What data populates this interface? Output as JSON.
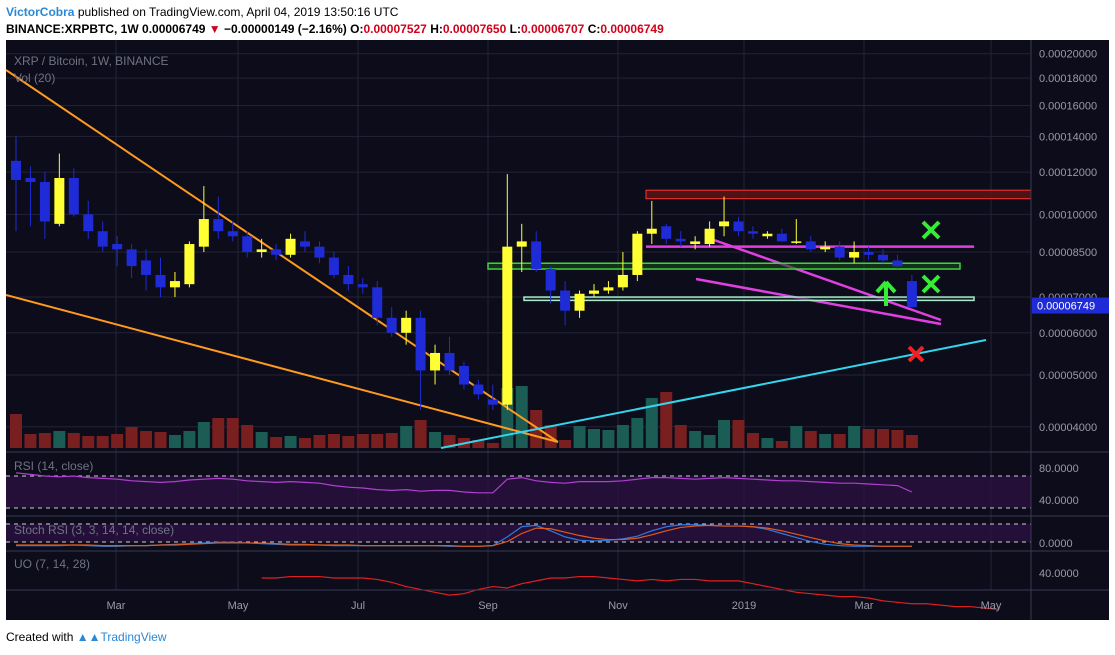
{
  "header": {
    "author": "VictorCobra",
    "published": "published on TradingView.com, April 04, 2019 13:50:16 UTC",
    "symbol": "BINANCE:XRPBTC, 1W",
    "last": "0.00006749",
    "change_arrow": "▼",
    "change": "−0.00000149 (−2.16%)",
    "o_label": "O:",
    "o_value": "0.00007527",
    "h_label": "H:",
    "h_value": "0.00007650",
    "l_label": "L:",
    "l_value": "0.00006707",
    "c_label": "C:",
    "c_value": "0.00006749"
  },
  "legend": {
    "main": "XRP / Bitcoin, 1W, BINANCE",
    "vol": "Vol (20)",
    "rsi": "RSI (14, close)",
    "stoch": "Stoch RSI (3, 3, 14, 14, close)",
    "uo": "UO (7, 14, 28)"
  },
  "footer": {
    "prefix": "Created with",
    "brand": "TradingView"
  },
  "colors": {
    "bg": "#0c0c1a",
    "grid": "#232338",
    "up": "#ffff33",
    "down": "#1f2bd6",
    "vol_up": "#1b5c55",
    "vol_down": "#7a1f1f",
    "fan": "#ff9a1f",
    "support": "#33d6ea",
    "channel": "#e040e0",
    "box_green": "#3fd43f",
    "box_red": "#ff3333",
    "rsi": "#b040d0",
    "stoch_k": "#2a7adf",
    "stoch_d": "#e05a1a",
    "uo": "#e02020",
    "mark_ok": "#33ee33",
    "mark_bad": "#ee2222"
  },
  "axes": {
    "price_ticks": [
      "0.00020000",
      "0.00018000",
      "0.00016000",
      "0.00014000",
      "0.00012000",
      "0.00010000",
      "0.00008500",
      "0.00007000",
      "0.00006000",
      "0.00005000",
      "0.00004000"
    ],
    "last_price_label": "0.00006749",
    "rsi_ticks": [
      "80.0000",
      "40.0000"
    ],
    "stoch_ticks": [
      "0.0000"
    ],
    "uo_ticks": [
      "40.0000"
    ],
    "time_ticks": [
      "Mar",
      "May",
      "Jul",
      "Sep",
      "Nov",
      "2019",
      "Mar",
      "May"
    ]
  },
  "chart_data": {
    "type": "candlestick",
    "title": "XRP / Bitcoin, 1W, BINANCE",
    "timeframe": "1W",
    "ohlc": [
      [
        0.000126,
        0.00014,
        9.3e-05,
        0.000116
      ],
      [
        0.000117,
        0.000123,
        9.5e-05,
        0.000115
      ],
      [
        0.000115,
        0.00012,
        9e-05,
        9.7e-05
      ],
      [
        9.6e-05,
        0.00013,
        9.5e-05,
        0.000117
      ],
      [
        0.000117,
        0.000122,
        9.9e-05,
        0.0001
      ],
      [
        0.0001,
        0.000106,
        9e-05,
        9.3e-05
      ],
      [
        9.3e-05,
        9.7e-05,
        8.5e-05,
        8.7e-05
      ],
      [
        8.8e-05,
        9.1e-05,
        8e-05,
        8.6e-05
      ],
      [
        8.6e-05,
        8.8e-05,
        7.6e-05,
        8e-05
      ],
      [
        8.2e-05,
        8.6e-05,
        7.2e-05,
        7.7e-05
      ],
      [
        7.7e-05,
        8.3e-05,
        7e-05,
        7.3e-05
      ],
      [
        7.3e-05,
        7.8e-05,
        7e-05,
        7.5e-05
      ],
      [
        7.4e-05,
        8.9e-05,
        7.3e-05,
        8.8e-05
      ],
      [
        8.7e-05,
        0.000113,
        8.5e-05,
        9.8e-05
      ],
      [
        9.8e-05,
        0.000108,
        9e-05,
        9.3e-05
      ],
      [
        9.3e-05,
        9.7e-05,
        8.9e-05,
        9.1e-05
      ],
      [
        9.1e-05,
        9.3e-05,
        8.3e-05,
        8.5e-05
      ],
      [
        8.5e-05,
        9e-05,
        8.3e-05,
        8.6e-05
      ],
      [
        8.6e-05,
        8.8e-05,
        8.2e-05,
        8.4e-05
      ],
      [
        8.4e-05,
        9.2e-05,
        8.3e-05,
        9e-05
      ],
      [
        8.9e-05,
        9.3e-05,
        8.5e-05,
        8.7e-05
      ],
      [
        8.7e-05,
        8.9e-05,
        8.1e-05,
        8.3e-05
      ],
      [
        8.3e-05,
        8.5e-05,
        7.6e-05,
        7.7e-05
      ],
      [
        7.7e-05,
        8e-05,
        7.2e-05,
        7.4e-05
      ],
      [
        7.4e-05,
        7.6e-05,
        7.1e-05,
        7.3e-05
      ],
      [
        7.3e-05,
        7.5e-05,
        6.2e-05,
        6.4e-05
      ],
      [
        6.4e-05,
        6.7e-05,
        5.9e-05,
        6e-05
      ],
      [
        6e-05,
        6.6e-05,
        5.7e-05,
        6.4e-05
      ],
      [
        6.4e-05,
        6.6e-05,
        4.3e-05,
        5.1e-05
      ],
      [
        5.1e-05,
        5.7e-05,
        4.8e-05,
        5.5e-05
      ],
      [
        5.5e-05,
        5.9e-05,
        5e-05,
        5.1e-05
      ],
      [
        5.2e-05,
        5.3e-05,
        4.7e-05,
        4.8e-05
      ],
      [
        4.8e-05,
        4.9e-05,
        4.5e-05,
        4.6e-05
      ],
      [
        4.5e-05,
        4.8e-05,
        4.3e-05,
        4.4e-05
      ],
      [
        4.4e-05,
        0.000119,
        4.3e-05,
        8.7e-05
      ],
      [
        8.7e-05,
        9.6e-05,
        7.8e-05,
        8.9e-05
      ],
      [
        8.9e-05,
        9.3e-05,
        7.8e-05,
        7.9e-05
      ],
      [
        7.9e-05,
        8e-05,
        6.8e-05,
        7.2e-05
      ],
      [
        7.2e-05,
        7.5e-05,
        6.2e-05,
        6.6e-05
      ],
      [
        6.6e-05,
        7.2e-05,
        6.4e-05,
        7.1e-05
      ],
      [
        7.1e-05,
        7.4e-05,
        7e-05,
        7.2e-05
      ],
      [
        7.2e-05,
        7.5e-05,
        7.1e-05,
        7.3e-05
      ],
      [
        7.3e-05,
        8.5e-05,
        7.2e-05,
        7.7e-05
      ],
      [
        7.7e-05,
        9.3e-05,
        7.5e-05,
        9.2e-05
      ],
      [
        9.2e-05,
        0.000106,
        8.8e-05,
        9.4e-05
      ],
      [
        9.5e-05,
        9.6e-05,
        8.8e-05,
        9e-05
      ],
      [
        9e-05,
        9.3e-05,
        8.7e-05,
        8.9e-05
      ],
      [
        8.8e-05,
        9.1e-05,
        8.6e-05,
        8.9e-05
      ],
      [
        8.8e-05,
        9.7e-05,
        8.7e-05,
        9.4e-05
      ],
      [
        9.5e-05,
        0.000108,
        9.1e-05,
        9.7e-05
      ],
      [
        9.7e-05,
        9.9e-05,
        9.1e-05,
        9.3e-05
      ],
      [
        9.3e-05,
        9.5e-05,
        9e-05,
        9.2e-05
      ],
      [
        9.1e-05,
        9.3e-05,
        9e-05,
        9.2e-05
      ],
      [
        9.2e-05,
        9.4e-05,
        8.9e-05,
        8.9e-05
      ],
      [
        8.9e-05,
        9.8e-05,
        8.8e-05,
        8.9e-05
      ],
      [
        8.9e-05,
        9.1e-05,
        8.5e-05,
        8.6e-05
      ],
      [
        8.6e-05,
        8.9e-05,
        8.5e-05,
        8.7e-05
      ],
      [
        8.7e-05,
        8.9e-05,
        8.2e-05,
        8.3e-05
      ],
      [
        8.3e-05,
        8.9e-05,
        8.1e-05,
        8.5e-05
      ],
      [
        8.5e-05,
        8.7e-05,
        8.2e-05,
        8.4e-05
      ],
      [
        8.4e-05,
        8.6e-05,
        8.1e-05,
        8.2e-05
      ],
      [
        8.2e-05,
        8.4e-05,
        7.9e-05,
        8e-05
      ],
      [
        7.5e-05,
        7.7e-05,
        6.7e-05,
        6.7e-05
      ]
    ],
    "volume_direction": "per candle (close >= open is up)",
    "last_close": 6.749e-05,
    "y_scale": "log",
    "y_range": [
      3.65e-05,
      0.000205
    ],
    "annotations": {
      "resistance_zone": [
        0.000107,
        0.000111
      ],
      "support_zone_upper": [
        7.9e-05,
        8.1e-05
      ],
      "support_zone_lower": [
        6.9e-05,
        7e-05
      ],
      "horizontal_line": 8.7e-05
    },
    "rsi_range": [
      20,
      100
    ],
    "rsi_levels": [
      70,
      30
    ]
  }
}
